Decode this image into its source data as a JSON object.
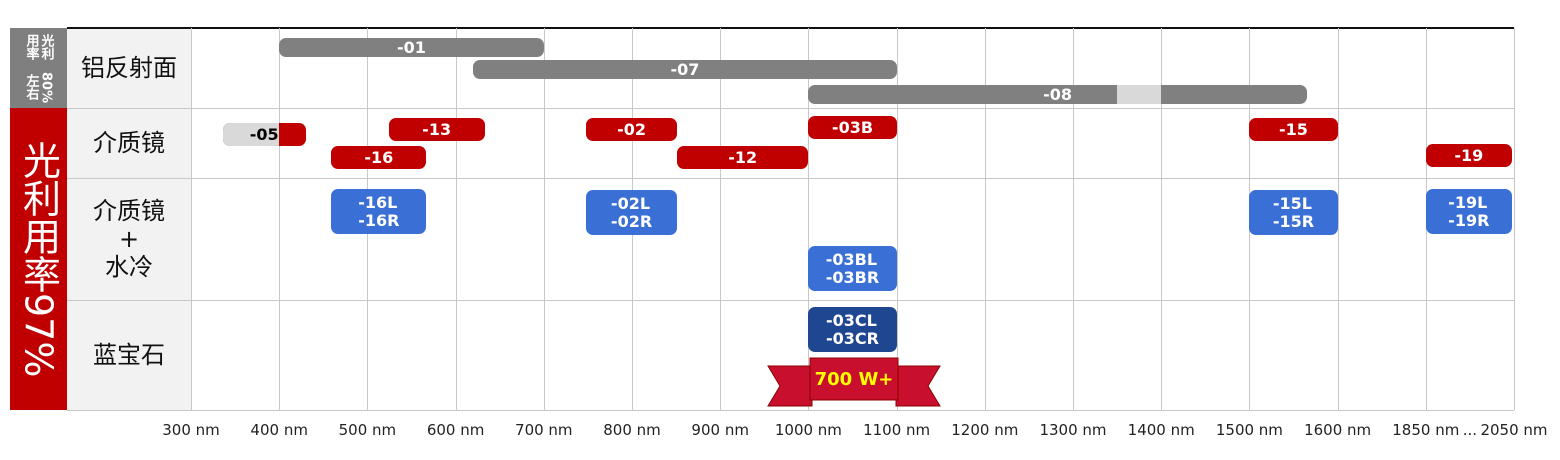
{
  "groups": [
    {
      "label": [
        "光利用率",
        "80%左右"
      ],
      "color": "#7f7f7f"
    },
    {
      "label": [
        "光利用率97%"
      ],
      "color": "#c00000"
    }
  ],
  "rows": [
    {
      "label": [
        "铝反射面"
      ],
      "bars": [
        {
          "label": [
            "-01"
          ],
          "start": 400,
          "end": 700,
          "color": "#808080"
        },
        {
          "label": [
            "-07"
          ],
          "start": 620,
          "end": 1100,
          "color": "#808080"
        },
        {
          "label": [
            "-08"
          ],
          "start": 1000,
          "end": 1565,
          "color": "#808080",
          "light": [
            1350,
            1400
          ]
        }
      ]
    },
    {
      "label": [
        "介质镜"
      ],
      "bars": [
        {
          "label": [
            "-05"
          ],
          "start": 336,
          "end": 430,
          "color": "#c00000",
          "light": [
            336,
            400
          ],
          "text_color": "#000000"
        },
        {
          "label": [
            "-13"
          ],
          "start": 524,
          "end": 633,
          "color": "#c00000"
        },
        {
          "label": [
            "-16"
          ],
          "start": 459,
          "end": 567,
          "color": "#c00000"
        },
        {
          "label": [
            "-02"
          ],
          "start": 748,
          "end": 851,
          "color": "#c00000"
        },
        {
          "label": [
            "-12"
          ],
          "start": 851,
          "end": 1000,
          "color": "#c00000"
        },
        {
          "label": [
            "-03B"
          ],
          "start": 1000,
          "end": 1100,
          "color": "#c00000"
        },
        {
          "label": [
            "-15"
          ],
          "start": 1500,
          "end": 1600,
          "color": "#c00000"
        },
        {
          "label": [
            "-19"
          ],
          "start": 1850,
          "end": 2045,
          "color": "#c00000"
        }
      ]
    },
    {
      "label": [
        "介质镜",
        "+",
        "水冷"
      ],
      "bars": [
        {
          "label": [
            "-16L",
            "-16R"
          ],
          "start": 459,
          "end": 567,
          "color": "#3a6fd6"
        },
        {
          "label": [
            "-02L",
            "-02R"
          ],
          "start": 748,
          "end": 851,
          "color": "#3a6fd6"
        },
        {
          "label": [
            "-03BL",
            "-03BR"
          ],
          "start": 1000,
          "end": 1100,
          "color": "#3a6fd6"
        },
        {
          "label": [
            "-15L",
            "-15R"
          ],
          "start": 1500,
          "end": 1600,
          "color": "#3a6fd6"
        },
        {
          "label": [
            "-19L",
            "-19R"
          ],
          "start": 1850,
          "end": 2045,
          "color": "#3a6fd6"
        }
      ]
    },
    {
      "label": [
        "蓝宝石"
      ],
      "bars": [
        {
          "label": [
            "-03CL",
            "-03CR"
          ],
          "start": 1000,
          "end": 1100,
          "color": "#1f4690"
        }
      ]
    }
  ],
  "badge": "700 W+",
  "x_axis": {
    "ticks": [
      {
        "value": 300,
        "label": "300 nm"
      },
      {
        "value": 400,
        "label": "400 nm"
      },
      {
        "value": 500,
        "label": "500 nm"
      },
      {
        "value": 600,
        "label": "600 nm"
      },
      {
        "value": 700,
        "label": "700 nm"
      },
      {
        "value": 800,
        "label": "800 nm"
      },
      {
        "value": 900,
        "label": "900 nm"
      },
      {
        "value": 1000,
        "label": "1000 nm"
      },
      {
        "value": 1100,
        "label": "1100 nm"
      },
      {
        "value": 1200,
        "label": "1200 nm"
      },
      {
        "value": 1300,
        "label": "1300 nm"
      },
      {
        "value": 1400,
        "label": "1400 nm"
      },
      {
        "value": 1500,
        "label": "1500 nm"
      },
      {
        "value": 1600,
        "label": "1600 nm"
      },
      {
        "value": 1850,
        "label": "1850 nm"
      },
      {
        "value": 2050,
        "label": "2050 nm"
      }
    ],
    "ellipsis": "..."
  }
}
